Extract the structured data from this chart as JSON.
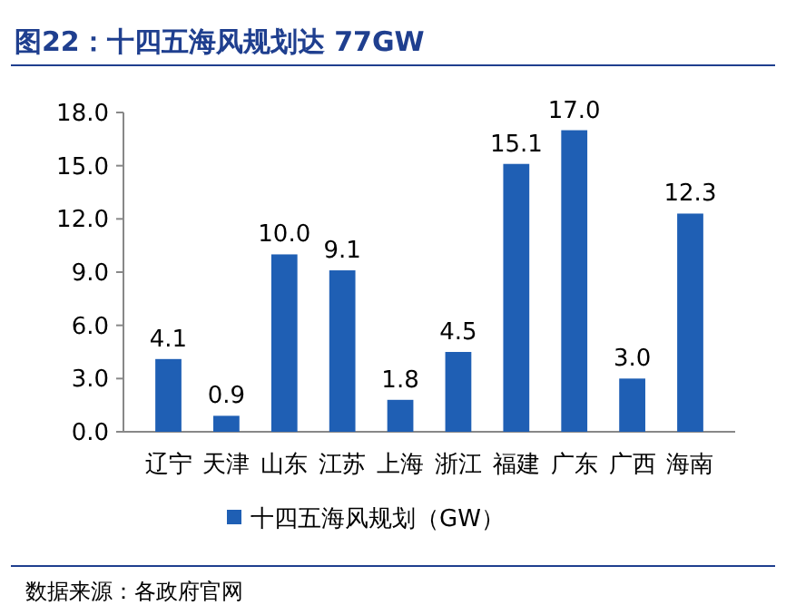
{
  "chart_data": {
    "type": "bar",
    "title": "图22：十四五海风规划达 77GW",
    "categories": [
      "辽宁",
      "天津",
      "山东",
      "江苏",
      "上海",
      "浙江",
      "福建",
      "广东",
      "广西",
      "海南"
    ],
    "series": [
      {
        "name": "十四五海风规划（GW）",
        "color": "#1f5fb4",
        "values": [
          4.1,
          0.9,
          10.0,
          9.1,
          1.8,
          4.5,
          15.1,
          17.0,
          3.0,
          12.3
        ],
        "value_labels": [
          "4.1",
          "0.9",
          "10.0",
          "9.1",
          "1.8",
          "4.5",
          "15.1",
          "17.0",
          "3.0",
          "12.3"
        ]
      }
    ],
    "ylim": [
      0,
      18
    ],
    "yticks": [
      {
        "value": 0,
        "label": "0.0"
      },
      {
        "value": 3,
        "label": "3.0"
      },
      {
        "value": 6,
        "label": "6.0"
      },
      {
        "value": 9,
        "label": "9.0"
      },
      {
        "value": 12,
        "label": "12.0"
      },
      {
        "value": 15,
        "label": "15.0"
      },
      {
        "value": 18,
        "label": "18.0"
      }
    ],
    "grid": false,
    "legend": "bottom",
    "annotations": [
      "数据来源：各政府官网"
    ]
  }
}
